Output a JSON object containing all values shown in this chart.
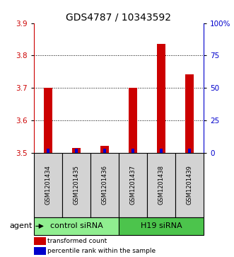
{
  "title": "GDS4787 / 10343592",
  "samples": [
    "GSM1201434",
    "GSM1201435",
    "GSM1201436",
    "GSM1201437",
    "GSM1201438",
    "GSM1201439"
  ],
  "red_values": [
    3.7,
    3.515,
    3.522,
    3.7,
    3.835,
    3.742
  ],
  "blue_values": [
    3.506,
    3.506,
    3.506,
    3.506,
    3.506,
    3.506
  ],
  "ylim_left": [
    3.5,
    3.9
  ],
  "ylim_right": [
    0,
    100
  ],
  "yticks_left": [
    3.5,
    3.6,
    3.7,
    3.8,
    3.9
  ],
  "yticks_right": [
    0,
    25,
    50,
    75,
    100
  ],
  "ytick_labels_right": [
    "0",
    "25",
    "50",
    "75",
    "100%"
  ],
  "grid_lines": [
    3.6,
    3.7,
    3.8
  ],
  "groups": [
    {
      "label": "control siRNA",
      "start": 0,
      "end": 3,
      "color": "#90EE90"
    },
    {
      "label": "H19 siRNA",
      "start": 3,
      "end": 6,
      "color": "#4CC44C"
    }
  ],
  "agent_label": "agent",
  "legend_red": "transformed count",
  "legend_blue": "percentile rank within the sample",
  "red_bar_width": 0.28,
  "blue_bar_width": 0.12,
  "red_color": "#CC0000",
  "blue_color": "#0000CC",
  "bar_base": 3.5,
  "left_axis_color": "#CC0000",
  "right_axis_color": "#0000CC",
  "title_fontsize": 10,
  "tick_fontsize": 7.5,
  "sample_fontsize": 6,
  "group_fontsize": 8,
  "legend_fontsize": 6.5
}
